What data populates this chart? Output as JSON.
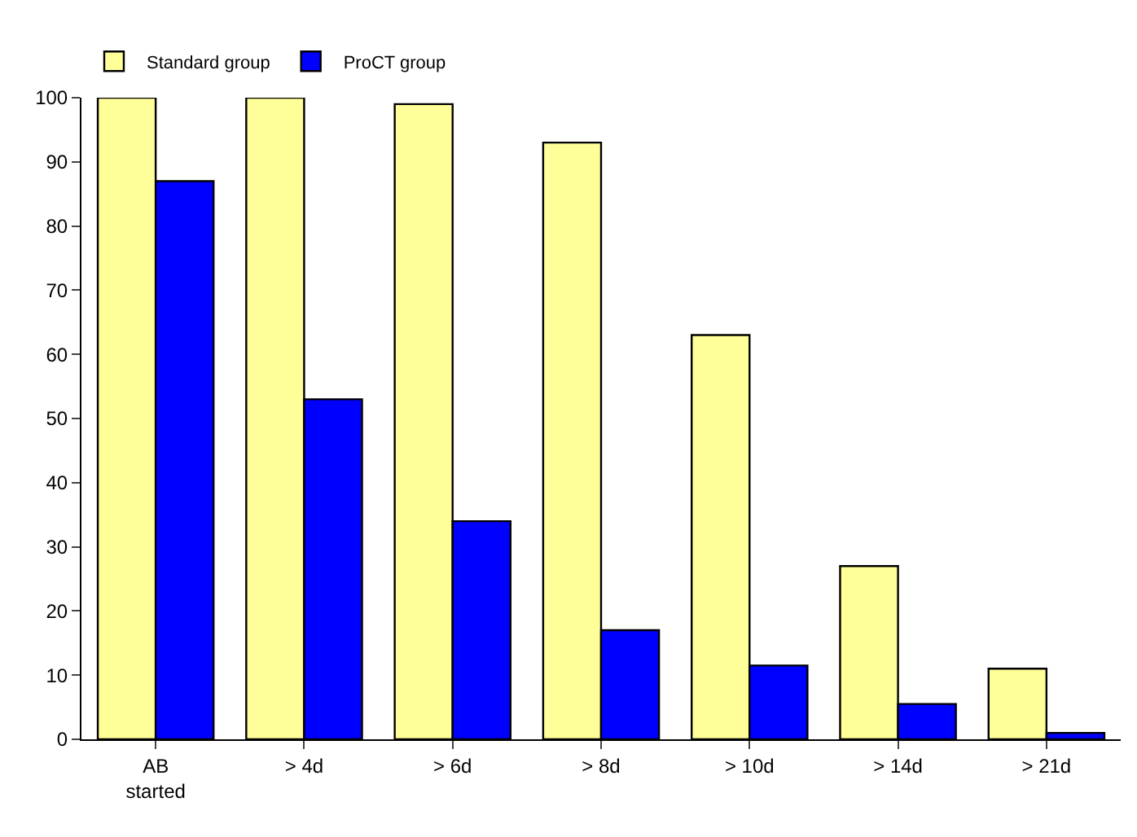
{
  "chart_data": {
    "type": "bar",
    "categories": [
      "AB\nstarted",
      "> 4d",
      "> 6d",
      "> 8d",
      "> 10d",
      "> 14d",
      "> 21d"
    ],
    "series": [
      {
        "name": "Standard group",
        "color": "#ffff99",
        "values": [
          100,
          100,
          99,
          93,
          63,
          27,
          11
        ]
      },
      {
        "name": "ProCT group",
        "color": "#0000ff",
        "values": [
          87,
          53,
          34,
          17,
          11.5,
          5.5,
          1
        ]
      }
    ],
    "ylim": [
      0,
      100
    ],
    "yticks": [
      0,
      10,
      20,
      30,
      40,
      50,
      60,
      70,
      80,
      90,
      100
    ],
    "grid": false,
    "legend": "top left"
  }
}
